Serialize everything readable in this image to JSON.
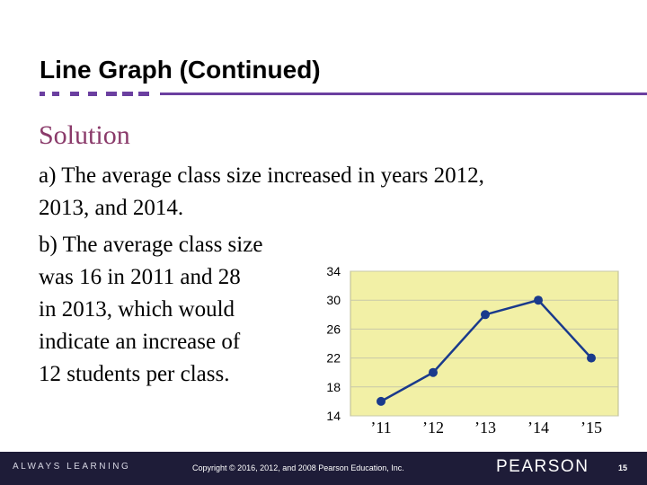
{
  "slide": {
    "title": "Line Graph (Continued)",
    "solution_heading": "Solution",
    "line_a1": "a) The average class size increased in years 2012,",
    "line_a2": "2013, and 2014.",
    "line_b1": "b) The average class size",
    "line_b2": "was 16 in 2011 and 28",
    "line_b3": "in 2013, which would",
    "line_b4": "indicate an increase of",
    "line_b5": "12 students per class."
  },
  "chart_data": {
    "type": "line",
    "categories": [
      "’11",
      "’12",
      "’13",
      "’14",
      "’15"
    ],
    "values": [
      16,
      20,
      28,
      30,
      22
    ],
    "yticks": [
      14,
      18,
      22,
      26,
      30,
      34
    ],
    "ylim": [
      14,
      34
    ],
    "grid": true,
    "title": "",
    "xlabel": "",
    "ylabel": "",
    "colors": {
      "background": "#f2f0a6",
      "line": "#1a3a8c",
      "grid": "#c8c8a8"
    }
  },
  "footer": {
    "left_text": "ALWAYS LEARNING",
    "copyright": "Copyright © 2016, 2012, and 2008 Pearson Education, Inc.",
    "brand": "PEARSON",
    "page_number": "15"
  },
  "colors": {
    "accent": "#6b3fa0",
    "solution": "#8a3a6a",
    "footer_bg": "#1e1c38"
  }
}
